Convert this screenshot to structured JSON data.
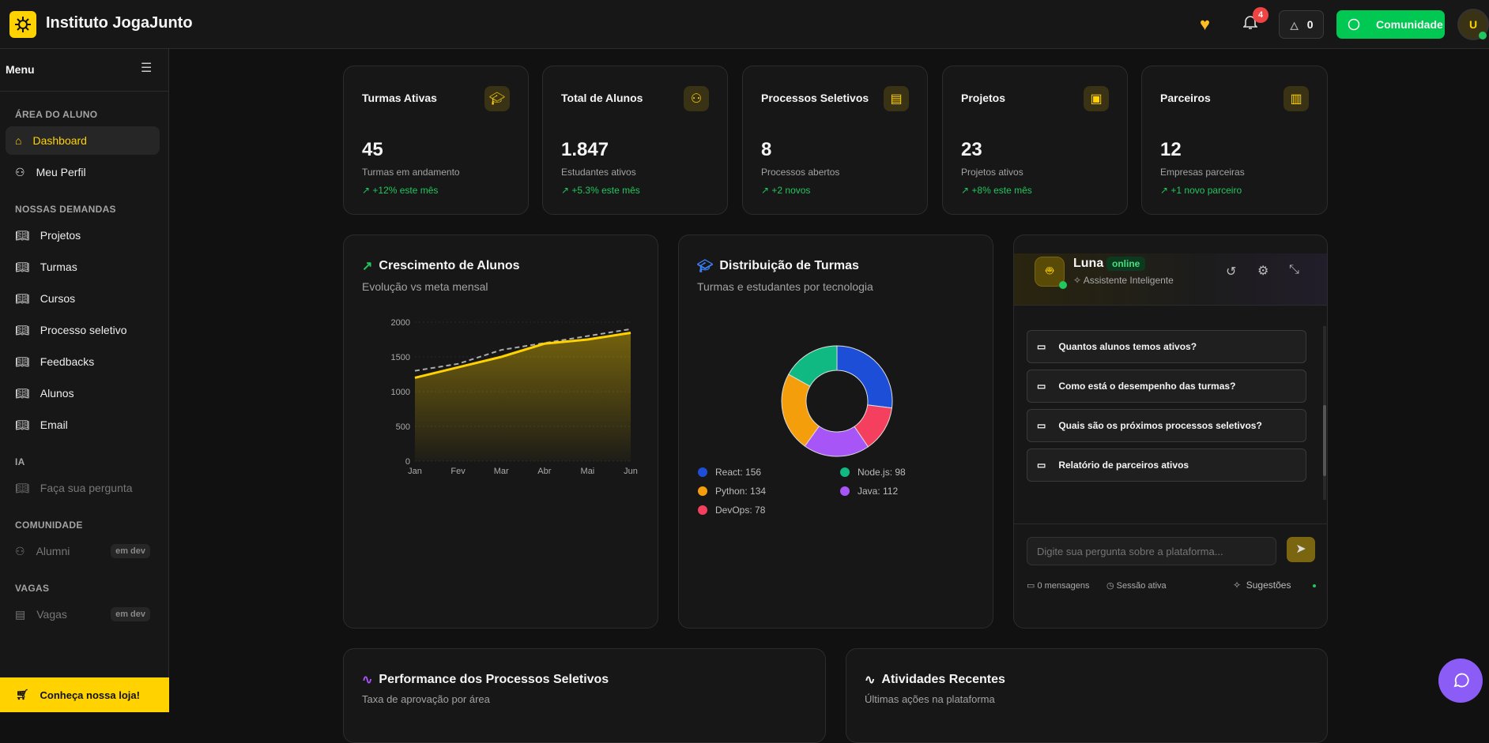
{
  "header": {
    "brand": "Instituto JogaJunto",
    "notifications": "4",
    "streak": "0",
    "community": "Comunidade",
    "avatar": "U"
  },
  "sidebar": {
    "title": "Menu",
    "sections": [
      {
        "label": "ÁREA DO ALUNO",
        "items": [
          {
            "label": "Dashboard",
            "icon": "home-icon",
            "active": true
          },
          {
            "label": "Meu Perfil",
            "icon": "user-icon"
          }
        ]
      },
      {
        "label": "NOSSAS DEMANDAS",
        "items": [
          {
            "label": "Projetos"
          },
          {
            "label": "Turmas"
          },
          {
            "label": "Cursos"
          },
          {
            "label": "Processo seletivo"
          },
          {
            "label": "Feedbacks"
          },
          {
            "label": "Alunos"
          },
          {
            "label": "Email"
          }
        ]
      },
      {
        "label": "IA",
        "items": [
          {
            "label": "Faça sua pergunta"
          }
        ]
      },
      {
        "label": "COMUNIDADE",
        "items": [
          {
            "label": "Alumni",
            "tag": "em dev"
          }
        ]
      },
      {
        "label": "VAGAS",
        "items": [
          {
            "label": "Vagas",
            "tag": "em dev"
          }
        ]
      }
    ],
    "store": "Conheça nossa loja!"
  },
  "stats": [
    {
      "title": "Turmas Ativas",
      "value": "45",
      "sub": "Turmas em andamento",
      "trend": "+12% este mês"
    },
    {
      "title": "Total de Alunos",
      "value": "1.847",
      "sub": "Estudantes ativos",
      "trend": "+5.3% este mês"
    },
    {
      "title": "Processos Seletivos",
      "value": "8",
      "sub": "Processos abertos",
      "trend": "+2 novos"
    },
    {
      "title": "Projetos",
      "value": "23",
      "sub": "Projetos ativos",
      "trend": "+8% este mês"
    },
    {
      "title": "Parceiros",
      "value": "12",
      "sub": "Empresas parceiras",
      "trend": "+1 novo parceiro"
    }
  ],
  "growth": {
    "title": "Crescimento de Alunos",
    "subtitle": "Evolução vs meta mensal"
  },
  "distribution": {
    "title": "Distribuição de Turmas",
    "subtitle": "Turmas e estudantes por tecnologia"
  },
  "chart_data": [
    {
      "type": "area",
      "categories": [
        "Jan",
        "Fev",
        "Mar",
        "Abr",
        "Mai",
        "Jun"
      ],
      "ylim": [
        0,
        2000
      ],
      "yticks": [
        0,
        500,
        1000,
        1500,
        2000
      ],
      "series": [
        {
          "values": [
            1200,
            1350,
            1500,
            1690,
            1750,
            1847
          ],
          "color": "#FFD200"
        },
        {
          "values": [
            1300,
            1400,
            1600,
            1700,
            1800,
            1900
          ],
          "color": "#aaaaaa",
          "style": "dashed"
        }
      ]
    },
    {
      "type": "pie",
      "donut": true,
      "slices": [
        {
          "name": "React",
          "value": 156,
          "color": "#1d4ed8",
          "label": "React: 156"
        },
        {
          "name": "DevOps",
          "value": 78,
          "color": "#f43f5e",
          "label": "DevOps: 78"
        },
        {
          "name": "Java",
          "value": 112,
          "color": "#a855f7",
          "label": "Java: 112"
        },
        {
          "name": "Python",
          "value": 134,
          "color": "#f59e0b",
          "label": "Python: 134"
        },
        {
          "name": "Node.js",
          "value": 98,
          "color": "#10b981",
          "label": "Node.js: 98"
        }
      ]
    }
  ],
  "chat": {
    "name": "Luna",
    "status": "online",
    "role": "Assistente Inteligente",
    "suggestions": [
      "Quantos alunos temos ativos?",
      "Como está o desempenho das turmas?",
      "Quais são os próximos processos seletivos?",
      "Relatório de parceiros ativos"
    ],
    "placeholder": "Digite sua pergunta sobre a plataforma...",
    "messages": "0 mensagens",
    "session": "Sessão ativa",
    "suggestions_label": "Sugestões"
  },
  "performance": {
    "title": "Performance dos Processos Seletivos",
    "subtitle": "Taxa de aprovação por área"
  },
  "activity": {
    "title": "Atividades Recentes",
    "subtitle": "Últimas ações na plataforma"
  }
}
